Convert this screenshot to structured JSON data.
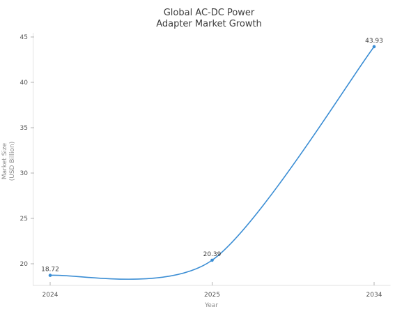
{
  "chart_data": {
    "type": "line",
    "title": "Global AC-DC Power Adapter Market Growth",
    "title_lines": [
      "Global AC-DC Power",
      "Adapter Market Growth"
    ],
    "xlabel": "Year",
    "ylabel": "Market Size (USD Billion)",
    "ylabel_lines": [
      "Market Size",
      "(USD Billion)"
    ],
    "categories": [
      "2024",
      "2025",
      "2034"
    ],
    "values": [
      18.72,
      20.39,
      43.93
    ],
    "point_labels": [
      "18.72",
      "20.39",
      "43.93"
    ],
    "yticks": [
      "20",
      "25",
      "30",
      "35",
      "40",
      "45"
    ],
    "ylim": [
      17.7,
      45.5
    ],
    "grid": false,
    "legend": "none",
    "smooth": true,
    "line_color": "#3a8dd4",
    "marker_color": "#3a8dd4"
  }
}
